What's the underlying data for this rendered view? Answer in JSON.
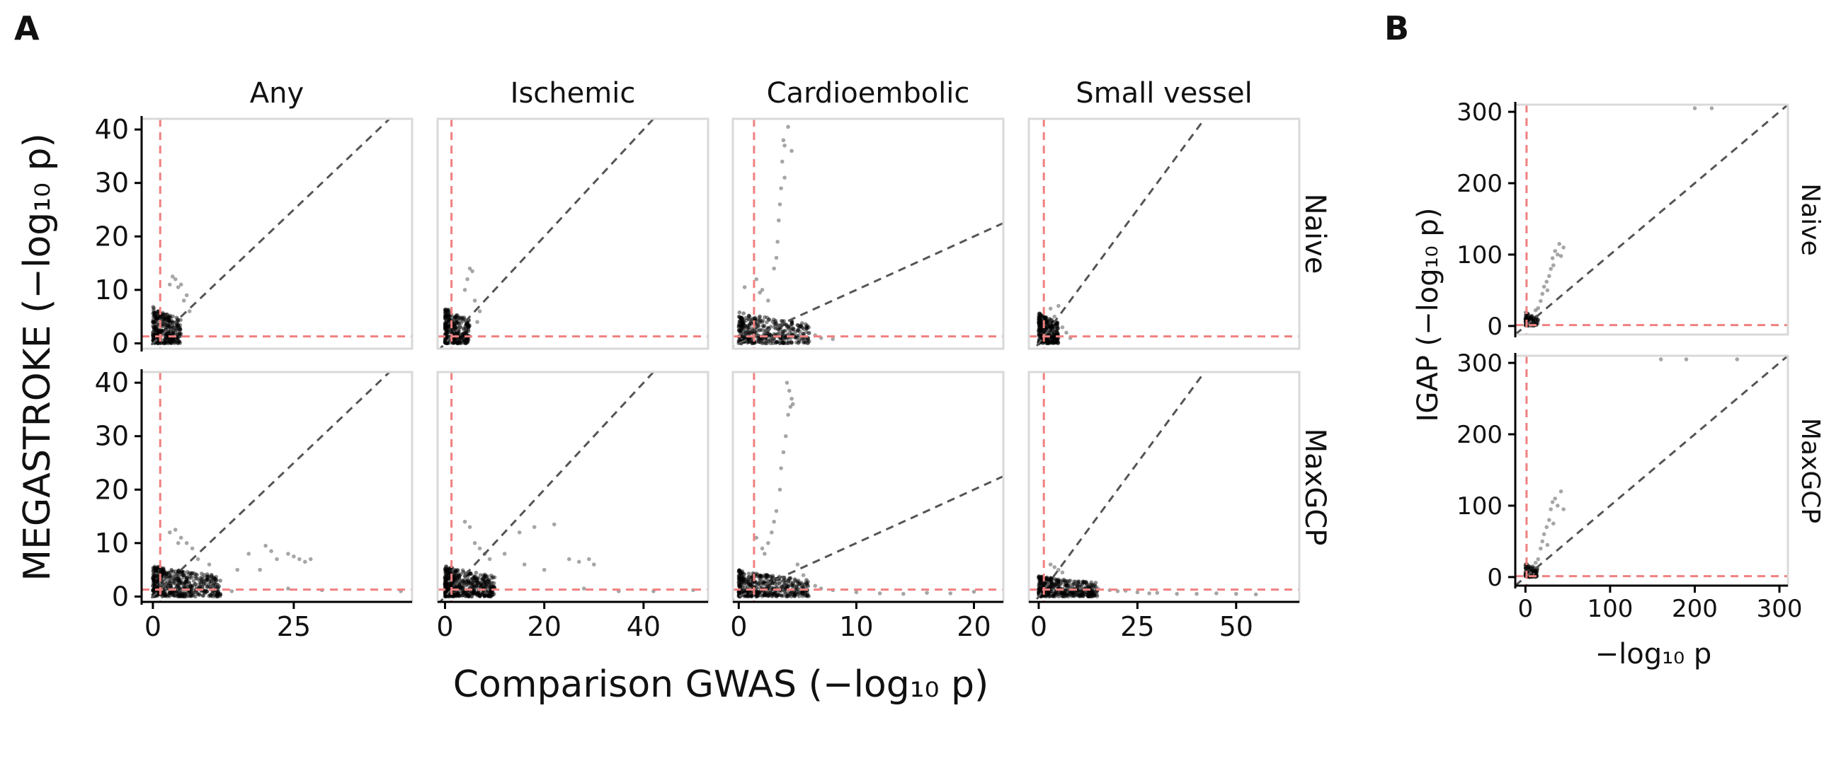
{
  "figure": {
    "panel_a_letter": "A",
    "panel_b_letter": "B",
    "panel_a": {
      "ylabel": "MEGASTROKE (−log₁₀ p)",
      "xlabel": "Comparison GWAS (−log₁₀ p)",
      "columns": [
        "Any",
        "Ischemic",
        "Cardioembolic",
        "Small vessel"
      ],
      "rows": [
        "Naive",
        "MaxGCP"
      ]
    },
    "panel_b": {
      "ylabel": "IGAP (−log₁₀ p)",
      "xlabel": "−log₁₀ p",
      "rows": [
        "Naive",
        "MaxGCP"
      ]
    }
  },
  "colors": {
    "points": "#000000",
    "diagonal": "#555555",
    "threshold": "#f08080",
    "frame": "#d9d9d9",
    "axis": "#000000"
  },
  "chart_data": [
    {
      "panel": "A",
      "type": "scatter",
      "facet_columns": [
        "Any",
        "Ischemic",
        "Cardioembolic",
        "Small vessel"
      ],
      "facet_rows": [
        "Naive",
        "MaxGCP"
      ],
      "ylabel": "MEGASTROKE (−log₁₀ p)",
      "xlabel": "Comparison GWAS (−log₁₀ p)",
      "ylim": [
        -1,
        42
      ],
      "yticks": [
        0,
        10,
        20,
        30,
        40
      ],
      "significance_threshold": 1.3,
      "x_axes": [
        {
          "column": "Any",
          "xlim": [
            -2,
            46
          ],
          "xticks": [
            0,
            25
          ]
        },
        {
          "column": "Ischemic",
          "xlim": [
            -1.5,
            53
          ],
          "xticks": [
            0,
            20,
            40
          ]
        },
        {
          "column": "Cardioembolic",
          "xlim": [
            -0.5,
            22.5
          ],
          "xticks": [
            0,
            10,
            20
          ]
        },
        {
          "column": "Small vessel",
          "xlim": [
            -2.5,
            66
          ],
          "xticks": [
            0,
            25,
            50
          ]
        }
      ],
      "reference_lines": [
        "y = x",
        "y = -log10(0.05)",
        "x = -log10(0.05)"
      ],
      "facets": [
        {
          "column": "Any",
          "row": "Naive",
          "clusters": [
            {
              "x": [
                0,
                5
              ],
              "y": [
                0,
                7
              ],
              "n": 340
            }
          ],
          "points": [
            [
              4,
              12
            ],
            [
              5,
              11
            ],
            [
              3.5,
              12.5
            ],
            [
              6,
              9
            ],
            [
              4.5,
              10.5
            ],
            [
              5.5,
              8
            ],
            [
              3,
              11
            ],
            [
              6.5,
              6
            ]
          ]
        },
        {
          "column": "Ischemic",
          "row": "Naive",
          "clusters": [
            {
              "x": [
                0,
                5
              ],
              "y": [
                0,
                7
              ],
              "n": 320
            }
          ],
          "points": [
            [
              5,
              14
            ],
            [
              5.5,
              13.5
            ],
            [
              4.5,
              12
            ],
            [
              6,
              8
            ],
            [
              7,
              6
            ],
            [
              4,
              10
            ],
            [
              6.5,
              4
            ]
          ]
        },
        {
          "column": "Cardioembolic",
          "row": "Naive",
          "clusters": [
            {
              "x": [
                0,
                6
              ],
              "y": [
                0,
                6
              ],
              "n": 380
            }
          ],
          "points": [
            [
              4.2,
              40.5
            ],
            [
              3.8,
              38
            ],
            [
              3.9,
              37
            ],
            [
              4.5,
              36
            ],
            [
              3.7,
              34
            ],
            [
              3.9,
              31
            ],
            [
              3.6,
              29
            ],
            [
              3.4,
              23
            ],
            [
              3.3,
              19
            ],
            [
              3.2,
              16
            ],
            [
              3,
              14
            ],
            [
              1.5,
              12
            ],
            [
              2,
              10
            ],
            [
              1.8,
              9.5
            ],
            [
              2.5,
              8
            ],
            [
              0.5,
              10.5
            ],
            [
              6,
              2
            ],
            [
              7,
              1
            ],
            [
              8,
              0.8
            ],
            [
              6.5,
              1.5
            ],
            [
              3.5,
              26
            ]
          ]
        },
        {
          "column": "Small vessel",
          "row": "Naive",
          "clusters": [
            {
              "x": [
                0,
                5
              ],
              "y": [
                0,
                6
              ],
              "n": 300
            }
          ],
          "points": [
            [
              6,
              3
            ],
            [
              7,
              2
            ],
            [
              8,
              1
            ],
            [
              5,
              7
            ],
            [
              3,
              6.5
            ],
            [
              4,
              5
            ]
          ]
        },
        {
          "column": "Any",
          "row": "MaxGCP",
          "clusters": [
            {
              "x": [
                0,
                12
              ],
              "y": [
                0,
                6
              ],
              "n": 500
            }
          ],
          "points": [
            [
              4,
              12.5
            ],
            [
              5,
              11
            ],
            [
              3,
              12
            ],
            [
              6,
              10
            ],
            [
              7,
              9
            ],
            [
              4.5,
              10
            ],
            [
              8,
              7
            ],
            [
              10,
              6
            ],
            [
              15,
              5
            ],
            [
              20,
              9.5
            ],
            [
              21,
              8.5
            ],
            [
              25,
              7.5
            ],
            [
              26,
              7
            ],
            [
              27,
              6.5
            ],
            [
              22,
              7
            ],
            [
              24,
              8
            ],
            [
              28,
              7
            ],
            [
              17,
              8
            ],
            [
              19,
              5
            ],
            [
              14,
              1
            ],
            [
              30,
              1.2
            ],
            [
              24,
              1.5
            ],
            [
              44,
              1
            ]
          ]
        },
        {
          "column": "Ischemic",
          "row": "MaxGCP",
          "clusters": [
            {
              "x": [
                0,
                10
              ],
              "y": [
                0,
                6
              ],
              "n": 500
            }
          ],
          "points": [
            [
              4,
              14
            ],
            [
              5,
              13
            ],
            [
              6,
              10
            ],
            [
              7,
              9
            ],
            [
              8,
              8
            ],
            [
              9,
              7
            ],
            [
              18,
              13
            ],
            [
              22,
              13.5
            ],
            [
              15,
              12
            ],
            [
              12,
              8
            ],
            [
              25,
              7
            ],
            [
              27,
              6.5
            ],
            [
              29,
              7
            ],
            [
              30,
              6
            ],
            [
              16,
              6
            ],
            [
              20,
              5
            ],
            [
              28,
              1.5
            ],
            [
              35,
              1
            ],
            [
              50,
              1.2
            ],
            [
              42,
              1
            ]
          ]
        },
        {
          "column": "Cardioembolic",
          "row": "MaxGCP",
          "clusters": [
            {
              "x": [
                0,
                6
              ],
              "y": [
                0,
                5
              ],
              "n": 450
            }
          ],
          "points": [
            [
              4.1,
              40
            ],
            [
              4.3,
              38.5
            ],
            [
              4.5,
              37
            ],
            [
              4.6,
              36
            ],
            [
              4.4,
              35.5
            ],
            [
              4.2,
              34
            ],
            [
              4,
              30
            ],
            [
              3.8,
              27
            ],
            [
              3.6,
              24
            ],
            [
              3.5,
              20
            ],
            [
              3.2,
              16
            ],
            [
              3,
              14
            ],
            [
              2.8,
              12
            ],
            [
              2.5,
              10
            ],
            [
              1.5,
              11
            ],
            [
              2,
              9
            ],
            [
              6.5,
              2
            ],
            [
              7,
              1.5
            ],
            [
              8,
              1.2
            ],
            [
              10,
              0.8
            ],
            [
              12,
              0.6
            ],
            [
              14,
              0.5
            ],
            [
              16,
              0.7
            ],
            [
              18,
              0.6
            ],
            [
              20,
              0.9
            ],
            [
              5,
              6
            ],
            [
              5.5,
              4
            ],
            [
              2.2,
              8
            ]
          ]
        },
        {
          "column": "Small vessel",
          "row": "MaxGCP",
          "clusters": [
            {
              "x": [
                0,
                15
              ],
              "y": [
                0,
                4
              ],
              "n": 400
            }
          ],
          "points": [
            [
              3,
              6
            ],
            [
              4,
              5.5
            ],
            [
              5,
              5
            ],
            [
              6,
              4.5
            ],
            [
              8,
              3
            ],
            [
              10,
              2.5
            ],
            [
              12,
              2
            ],
            [
              15,
              1.5
            ],
            [
              18,
              1.2
            ],
            [
              20,
              1
            ],
            [
              22,
              1.1
            ],
            [
              25,
              0.8
            ],
            [
              28,
              0.6
            ],
            [
              30,
              0.7
            ],
            [
              35,
              0.5
            ],
            [
              40,
              0.5
            ],
            [
              45,
              0.6
            ],
            [
              50,
              0.5
            ],
            [
              55,
              0.4
            ]
          ]
        }
      ]
    },
    {
      "panel": "B",
      "type": "scatter",
      "facet_rows": [
        "Naive",
        "MaxGCP"
      ],
      "ylabel": "IGAP (−log₁₀ p)",
      "xlabel": "−log₁₀ p",
      "xlim": [
        -12,
        310
      ],
      "ylim": [
        -12,
        310
      ],
      "xticks": [
        0,
        100,
        200,
        300
      ],
      "yticks": [
        0,
        100,
        200,
        300
      ],
      "significance_threshold": 1.3,
      "reference_lines": [
        "y = x",
        "y = -log10(0.05)",
        "x = -log10(0.05)"
      ],
      "facets": [
        {
          "row": "Naive",
          "clusters": [
            {
              "x": [
                0,
                15
              ],
              "y": [
                0,
                20
              ],
              "n": 90
            }
          ],
          "points": [
            [
              15,
              25
            ],
            [
              18,
              35
            ],
            [
              20,
              45
            ],
            [
              22,
              55
            ],
            [
              25,
              62
            ],
            [
              28,
              70
            ],
            [
              30,
              80
            ],
            [
              32,
              95
            ],
            [
              35,
              105
            ],
            [
              38,
              100
            ],
            [
              40,
              115
            ],
            [
              42,
              98
            ],
            [
              45,
              110
            ],
            [
              33,
              85
            ],
            [
              26,
              50
            ],
            [
              12,
              22
            ],
            [
              200,
              305
            ],
            [
              220,
              305
            ]
          ]
        },
        {
          "row": "MaxGCP",
          "clusters": [
            {
              "x": [
                0,
                15
              ],
              "y": [
                0,
                20
              ],
              "n": 90
            }
          ],
          "points": [
            [
              15,
              25
            ],
            [
              18,
              40
            ],
            [
              20,
              50
            ],
            [
              22,
              60
            ],
            [
              25,
              70
            ],
            [
              28,
              80
            ],
            [
              30,
              95
            ],
            [
              32,
              105
            ],
            [
              35,
              110
            ],
            [
              38,
              100
            ],
            [
              42,
              120
            ],
            [
              45,
              95
            ],
            [
              33,
              75
            ],
            [
              26,
              45
            ],
            [
              12,
              20
            ],
            [
              160,
              305
            ],
            [
              190,
              305
            ],
            [
              250,
              305
            ]
          ]
        }
      ]
    }
  ]
}
